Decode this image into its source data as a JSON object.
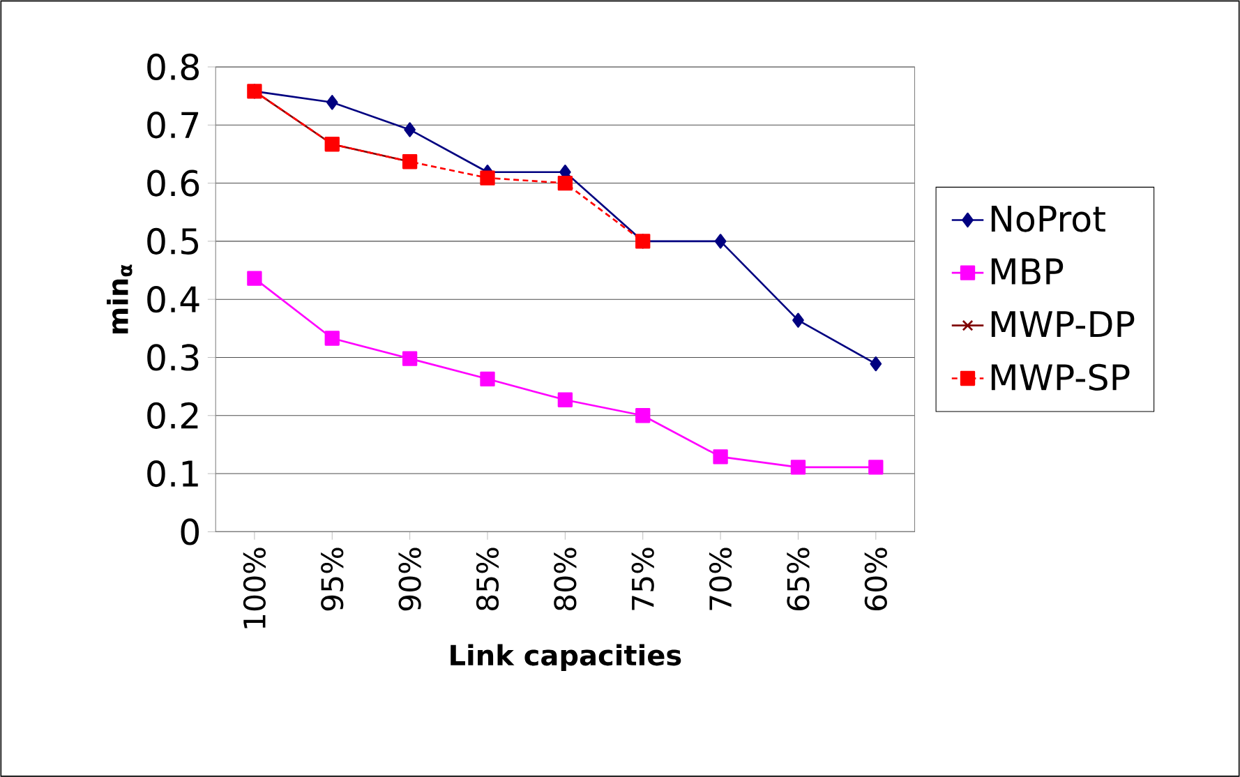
{
  "chart_data": {
    "type": "line",
    "xlabel": "Link capacities",
    "ylabel": "min$_{α}$",
    "categories": [
      "100%",
      "95%",
      "90%",
      "85%",
      "80%",
      "75%",
      "70%",
      "65%",
      "60%"
    ],
    "ylim": [
      0,
      0.8
    ],
    "yticks": [
      0,
      0.1,
      0.2,
      0.3,
      0.4,
      0.5,
      0.6,
      0.7,
      0.8
    ],
    "grid": "y",
    "legend": "right",
    "series": [
      {
        "name": "NoProt",
        "color": "#000080",
        "marker": "diamond",
        "line_style": "solid",
        "values": [
          0.758,
          0.739,
          0.692,
          0.619,
          0.619,
          0.5,
          0.5,
          0.364,
          0.289
        ]
      },
      {
        "name": "MBP",
        "color": "#ff00ff",
        "marker": "square",
        "line_style": "solid",
        "values": [
          0.436,
          0.333,
          0.298,
          0.263,
          0.227,
          0.2,
          0.129,
          0.111,
          0.111
        ]
      },
      {
        "name": "MWP-DP",
        "color": "#800000",
        "marker": "cross",
        "line_style": "solid",
        "values": [
          0.758,
          0.667,
          0.637,
          null,
          null,
          null,
          null,
          null,
          null
        ]
      },
      {
        "name": "MWP-SP",
        "color": "#ff0000",
        "marker": "square",
        "line_style": "dashed",
        "values": [
          0.758,
          0.667,
          0.637,
          0.609,
          0.6,
          0.5,
          null,
          null,
          null
        ]
      }
    ]
  }
}
